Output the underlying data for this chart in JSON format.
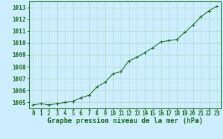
{
  "x": [
    0,
    1,
    2,
    3,
    4,
    5,
    6,
    7,
    8,
    9,
    10,
    11,
    12,
    13,
    14,
    15,
    16,
    17,
    18,
    19,
    20,
    21,
    22,
    23
  ],
  "y": [
    1004.8,
    1004.9,
    1004.8,
    1004.9,
    1005.0,
    1005.1,
    1005.4,
    1005.6,
    1006.3,
    1006.7,
    1007.4,
    1007.6,
    1008.5,
    1008.8,
    1009.2,
    1009.6,
    1010.1,
    1010.2,
    1010.3,
    1010.9,
    1011.5,
    1012.2,
    1012.7,
    1013.1
  ],
  "ylim": [
    1004.5,
    1013.5
  ],
  "yticks": [
    1005,
    1006,
    1007,
    1008,
    1009,
    1010,
    1011,
    1012,
    1013
  ],
  "xticks": [
    0,
    1,
    2,
    3,
    4,
    5,
    6,
    7,
    8,
    9,
    10,
    11,
    12,
    13,
    14,
    15,
    16,
    17,
    18,
    19,
    20,
    21,
    22,
    23
  ],
  "xlabel": "Graphe pression niveau de la mer (hPa)",
  "line_color": "#1a6b1a",
  "marker": "+",
  "background_color": "#cceeff",
  "grid_color": "#aaddcc",
  "tick_label_color": "#1a6b1a",
  "xlabel_color": "#1a6b1a",
  "xlabel_fontsize": 7,
  "tick_fontsize": 5.5,
  "ytick_fontsize": 6
}
